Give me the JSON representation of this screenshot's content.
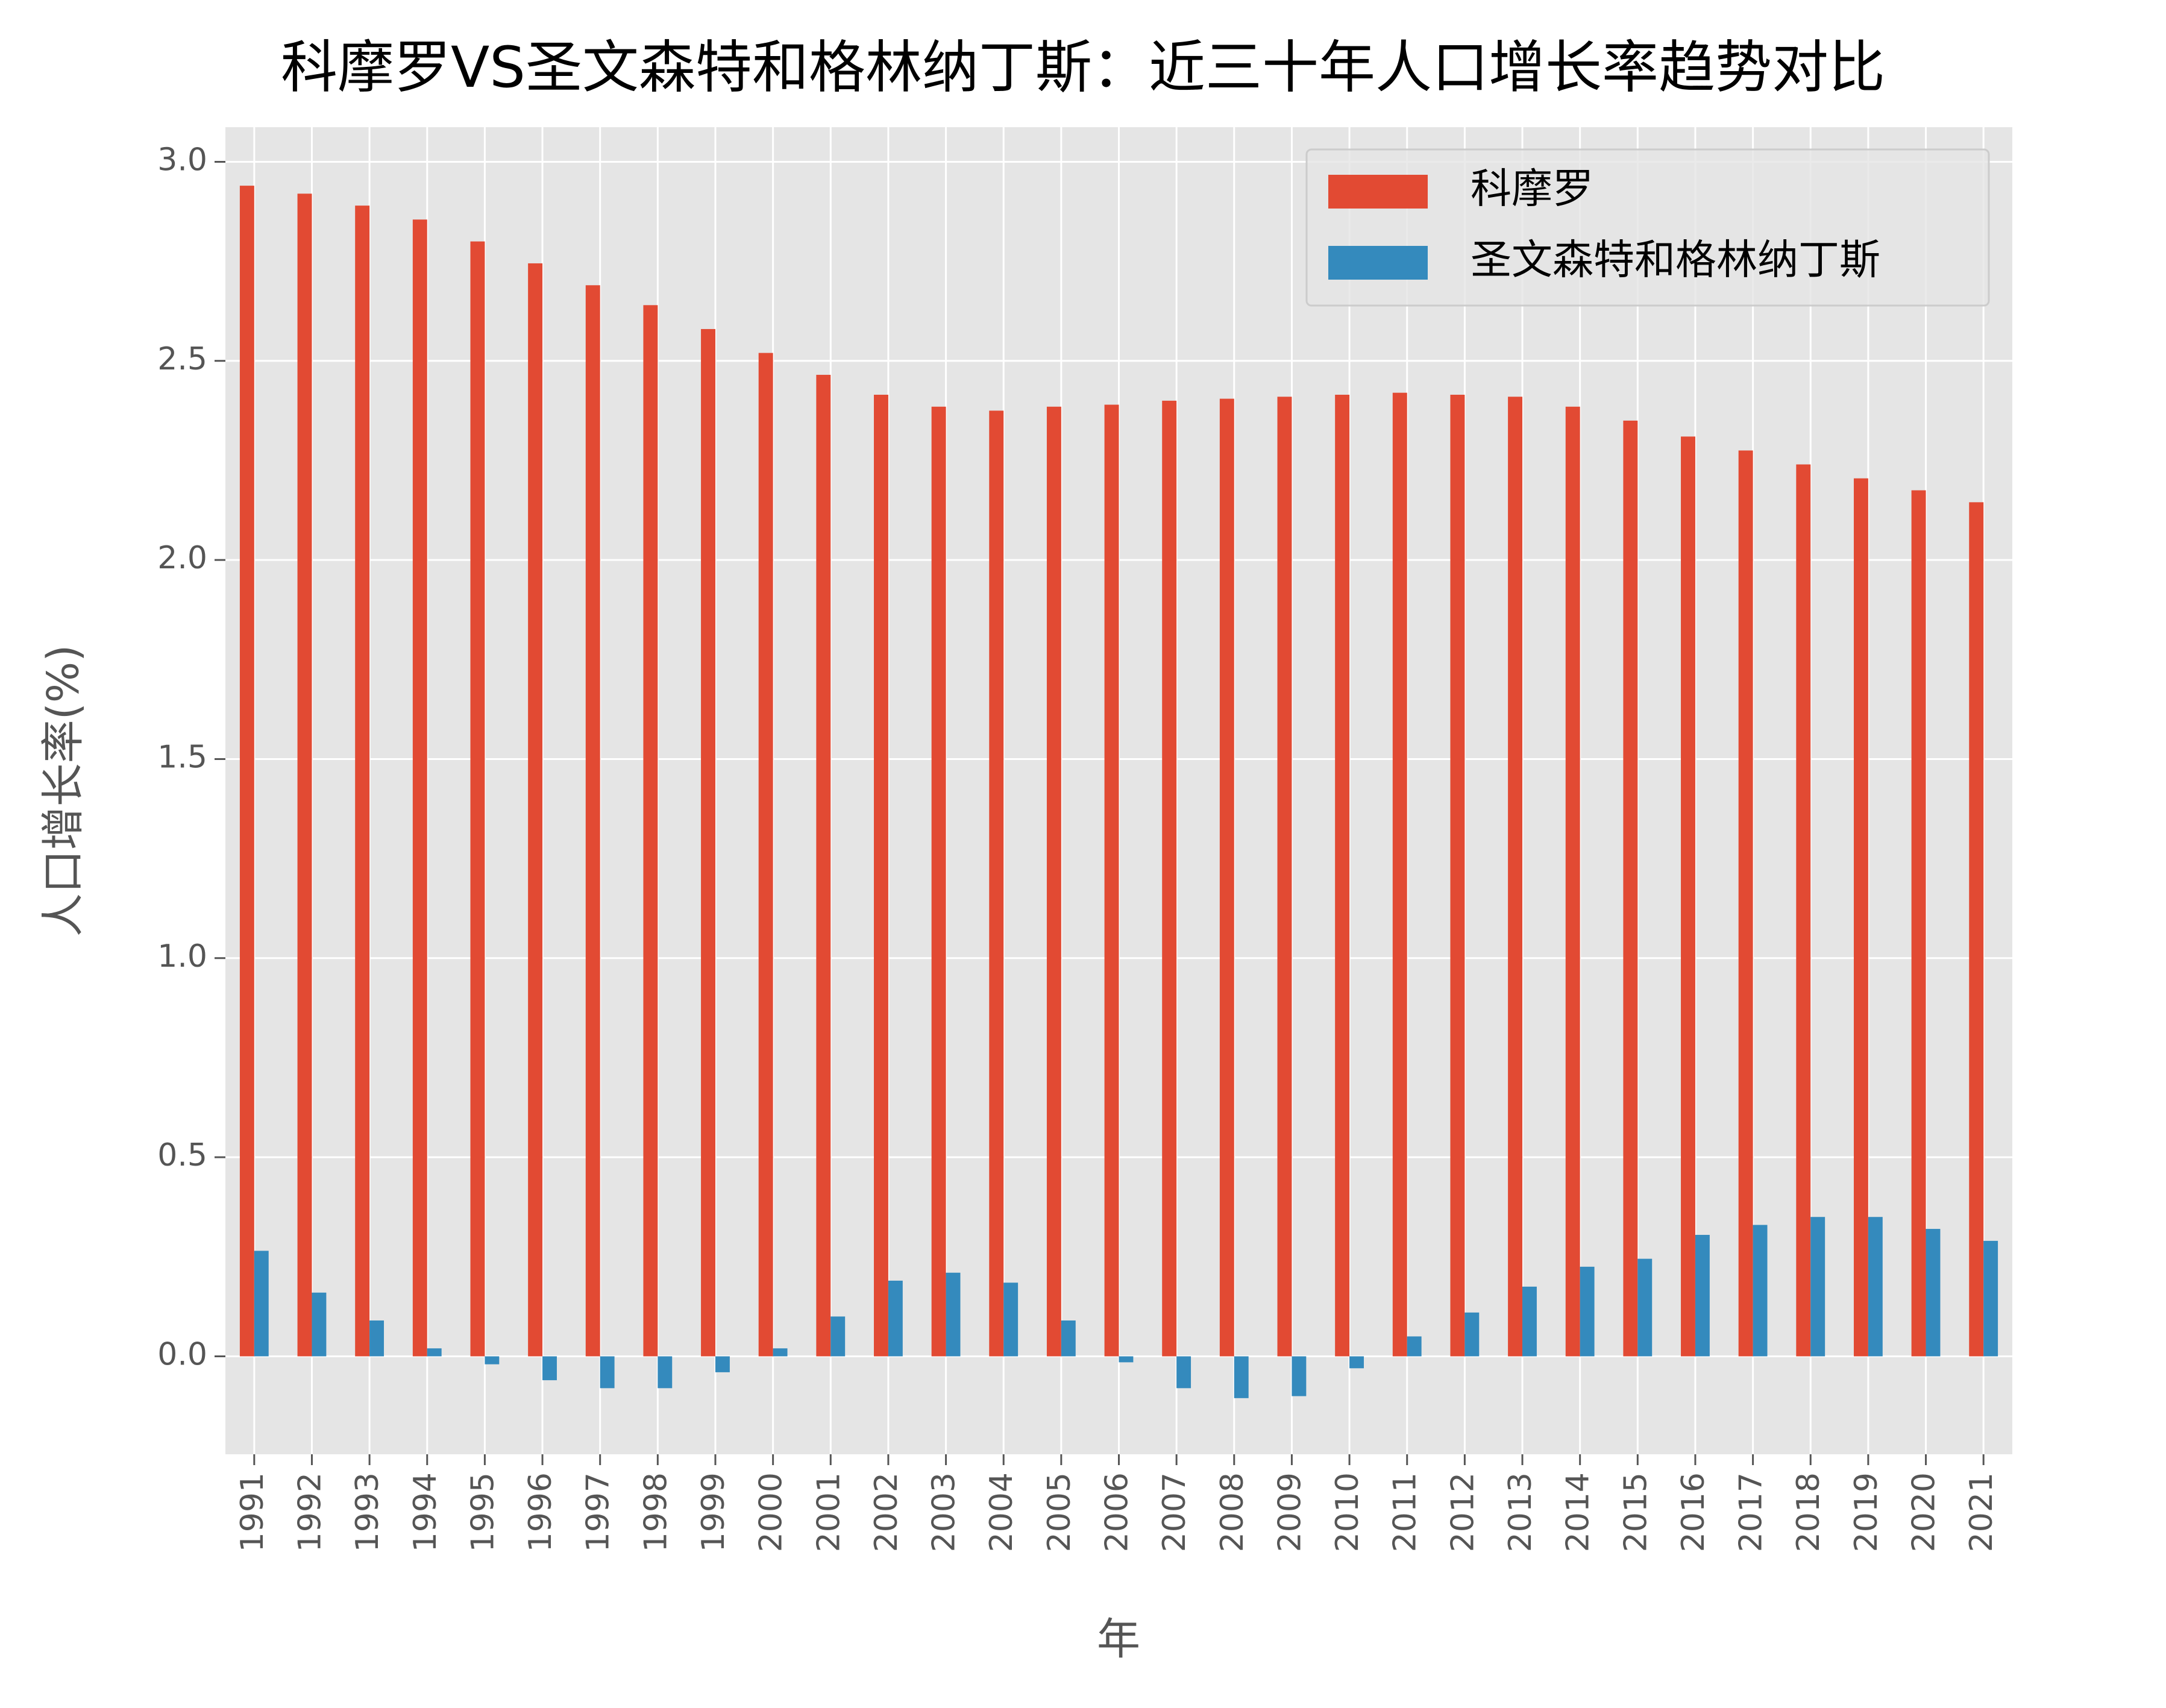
{
  "chart_data": {
    "type": "bar",
    "title": "科摩罗VS圣文森特和格林纳丁斯：近三十年人口增长率趋势对比",
    "x_label": "年",
    "y_label": "人口增长率(%)",
    "categories": [
      "1991",
      "1992",
      "1993",
      "1994",
      "1995",
      "1996",
      "1997",
      "1998",
      "1999",
      "2000",
      "2001",
      "2002",
      "2003",
      "2004",
      "2005",
      "2006",
      "2007",
      "2008",
      "2009",
      "2010",
      "2011",
      "2012",
      "2013",
      "2014",
      "2015",
      "2016",
      "2017",
      "2018",
      "2019",
      "2020",
      "2021"
    ],
    "series": [
      {
        "name": "科摩罗",
        "color": "#E24A33",
        "values": [
          2.94,
          2.92,
          2.89,
          2.855,
          2.8,
          2.745,
          2.69,
          2.64,
          2.58,
          2.52,
          2.465,
          2.415,
          2.385,
          2.375,
          2.385,
          2.39,
          2.4,
          2.405,
          2.41,
          2.415,
          2.42,
          2.415,
          2.41,
          2.385,
          2.35,
          2.31,
          2.275,
          2.24,
          2.205,
          2.175,
          2.145
        ]
      },
      {
        "name": "圣文森特和格林纳丁斯",
        "color": "#348ABD",
        "values": [
          0.265,
          0.16,
          0.09,
          0.02,
          -0.02,
          -0.06,
          -0.08,
          -0.08,
          -0.04,
          0.02,
          0.1,
          0.19,
          0.21,
          0.185,
          0.09,
          -0.015,
          -0.08,
          -0.105,
          -0.1,
          -0.03,
          0.05,
          0.11,
          0.175,
          0.225,
          0.245,
          0.305,
          0.33,
          0.35,
          0.35,
          0.32,
          0.29
        ]
      }
    ],
    "ylim": [
      -0.246,
      3.087
    ],
    "yticks": [
      {
        "value": 0,
        "label": "0.0"
      },
      {
        "value": 0.5,
        "label": "0.5"
      },
      {
        "value": 1,
        "label": "1.0"
      },
      {
        "value": 1.5,
        "label": "1.5"
      },
      {
        "value": 2,
        "label": "2.0"
      },
      {
        "value": 2.5,
        "label": "2.5"
      },
      {
        "value": 3,
        "label": "3.0"
      }
    ],
    "grid": true,
    "legend": "upper right"
  }
}
